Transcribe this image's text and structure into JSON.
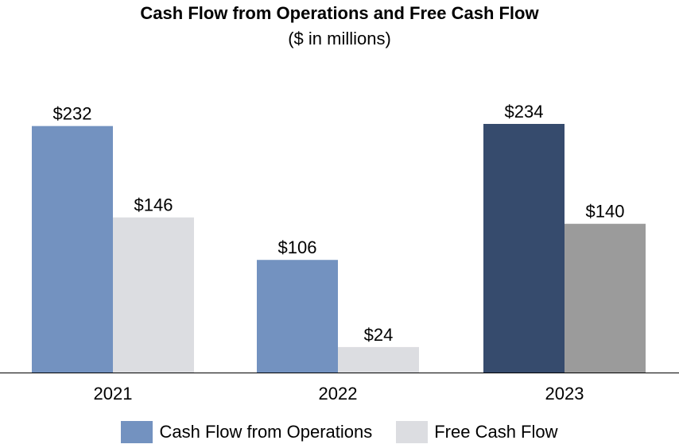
{
  "chart_data": {
    "type": "bar",
    "title": "Cash Flow from Operations and Free Cash Flow",
    "subtitle": "($ in millions)",
    "categories": [
      "2021",
      "2022",
      "2023"
    ],
    "series": [
      {
        "name": "Cash Flow from Operations",
        "values": [
          232,
          106,
          234
        ],
        "labels": [
          "$232",
          "$106",
          "$234"
        ],
        "colors": [
          "#7392c0",
          "#7392c0",
          "#364b6d"
        ]
      },
      {
        "name": "Free Cash Flow",
        "values": [
          146,
          24,
          140
        ],
        "labels": [
          "$146",
          "$24",
          "$140"
        ],
        "colors": [
          "#dcdde1",
          "#dcdde1",
          "#9b9b9b"
        ]
      }
    ],
    "ylim": [
      0,
      234
    ],
    "grid": false,
    "legend_position": "bottom",
    "legend_colors": [
      "#7392c0",
      "#dcdde1"
    ]
  }
}
